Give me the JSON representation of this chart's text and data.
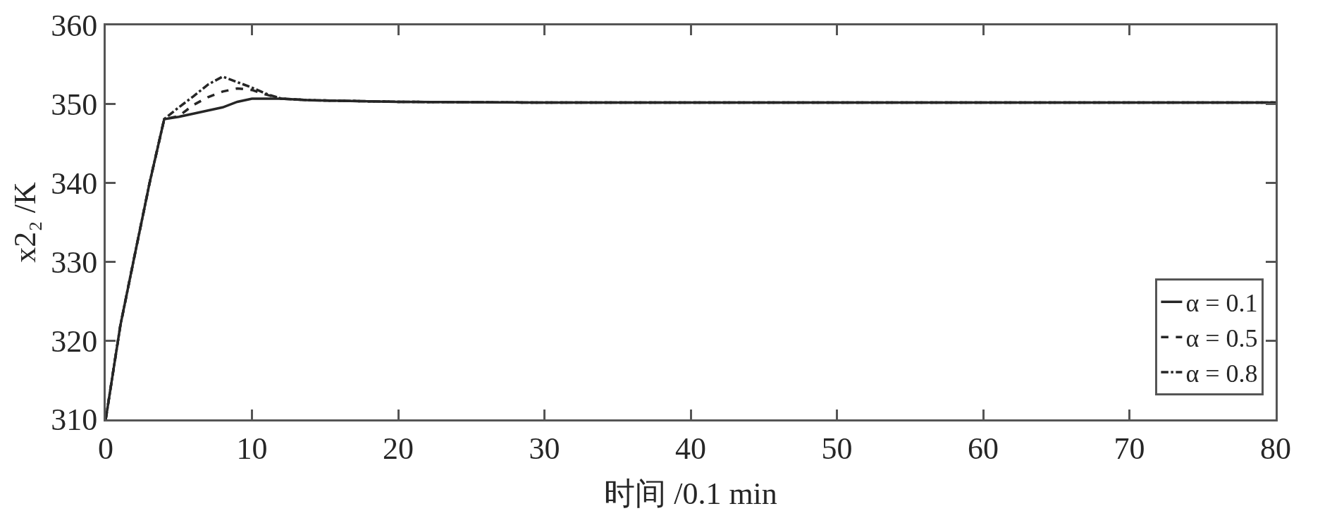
{
  "chart_data": {
    "type": "line",
    "xlabel": "时间 /0.1 min",
    "ylabel": "x2₂ /K",
    "xlim": [
      0,
      80
    ],
    "xticks": [
      0,
      10,
      20,
      30,
      40,
      50,
      60,
      70,
      80
    ],
    "ylim": [
      310,
      360
    ],
    "yticks": [
      310,
      320,
      330,
      340,
      350,
      360
    ],
    "grid": false,
    "legend": "bottom right",
    "marker": "none",
    "series": [
      {
        "name": "α = 0.8",
        "color": "#262626",
        "line_style": "dashdot",
        "x": [
          0,
          1,
          2,
          3,
          4,
          5,
          6,
          7,
          8,
          9,
          10,
          11,
          12,
          14,
          20,
          30,
          50,
          80
        ],
        "values": [
          310,
          321.9,
          331,
          340,
          348.1,
          349.6,
          351,
          352.5,
          353.5,
          352.8,
          352.1,
          351.3,
          350.7,
          350.5,
          350.3,
          350.2,
          350.2,
          350.2
        ]
      },
      {
        "name": "α = 0.5",
        "color": "#262626",
        "line_style": "dashed",
        "x": [
          0,
          1,
          2,
          3,
          4,
          5,
          6,
          7,
          8,
          9,
          10,
          11,
          12,
          14,
          20,
          30,
          50,
          80
        ],
        "values": [
          310,
          321.9,
          331,
          340,
          348.1,
          348.5,
          349.9,
          350.9,
          351.6,
          352,
          351.8,
          351.2,
          350.7,
          350.5,
          350.3,
          350.2,
          350.2,
          350.2
        ]
      },
      {
        "name": "α = 0.1",
        "color": "#262626",
        "line_style": "solid",
        "x": [
          0,
          1,
          2,
          3,
          4,
          5,
          6,
          7,
          8,
          9,
          10,
          11,
          12,
          14,
          20,
          30,
          50,
          80
        ],
        "values": [
          310,
          321.9,
          331,
          340,
          348.1,
          348.4,
          348.8,
          349.2,
          349.6,
          350.3,
          350.7,
          350.7,
          350.7,
          350.5,
          350.3,
          350.2,
          350.2,
          350.2
        ]
      }
    ]
  }
}
